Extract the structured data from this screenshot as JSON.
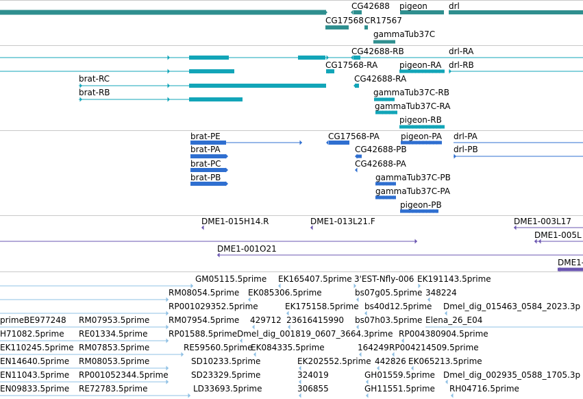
{
  "colors": {
    "gene": "#2f8f8f",
    "mrna": "#12a5b8",
    "protein": "#2f6fd0",
    "bac": "#6a55b0",
    "est": "#8fc0e4",
    "divider": "#c8c8c8"
  },
  "tracks": {
    "genes": {
      "labels": [
        "CG42688",
        "pigeon",
        "drl",
        "CG17568",
        "CR17567",
        "gammaTub37C"
      ]
    },
    "transcripts": {
      "labels": [
        "CG42688-RB",
        "drl-RA",
        "CG17568-RA",
        "pigeon-RA",
        "drl-RB",
        "brat-RC",
        "CG42688-RA",
        "brat-RB",
        "gammaTub37C-RB",
        "gammaTub37C-RA",
        "pigeon-RB"
      ]
    },
    "proteins": {
      "labels": [
        "brat-PE",
        "CG17568-PA",
        "pigeon-PA",
        "drl-PA",
        "brat-PA",
        "CG42688-PB",
        "drl-PB",
        "brat-PC",
        "CG42688-PA",
        "brat-PB",
        "gammaTub37C-PB",
        "gammaTub37C-PA",
        "pigeon-PB"
      ]
    },
    "bacs": {
      "labels": [
        "DME1-015H14.R",
        "DME1-013L21.F",
        "DME1-003L17",
        "DME1-005L",
        "DME1-001O21",
        "DME1-"
      ]
    },
    "ests": {
      "labels": [
        "GM05115.5prime",
        "EK165407.5prime",
        "3'EST-Nfly-006",
        "EK191143.5prime",
        "RM08054.5prime",
        "EK085306.5prime",
        "bs07g05.5prime",
        "348224",
        "RP001029352.5prime",
        "EK175158.5prime",
        "bs40d12.5prime",
        "Dmel_dig_015463_0584_2023.3p",
        "primeBE977248",
        "RM07953.5prime",
        "RM07954.5prime",
        "429712",
        "23616415990",
        "bs07h03.5prime",
        "Elena_26_E04",
        "H71082.5prime",
        "RE01334.5prime",
        "RP01588.5prime",
        "Dmel_dig_001819_0607_3664.3prime",
        "RP004380904.5prime",
        "EK110245.5prime",
        "RM07853.5prime",
        "RE59560.5prime",
        "EK084335.5prime",
        "164249",
        "RP004214509.5prime",
        "EN14640.5prime",
        "RM08053.5prime",
        "SD10233.5prime",
        "EK202552.5prime",
        "442826",
        "EK065213.5prime",
        "EN11043.5prime",
        "RP001052344.5prime",
        "SD23329.5prime",
        "324019",
        "GH01559.5prime",
        "Dmel_dig_002935_0588_1705.3p",
        "EN09833.5prime",
        "RE72783.5prime",
        "LD33693.5prime",
        "306855",
        "GH11551.5prime",
        "RH04716.5prime"
      ]
    }
  }
}
